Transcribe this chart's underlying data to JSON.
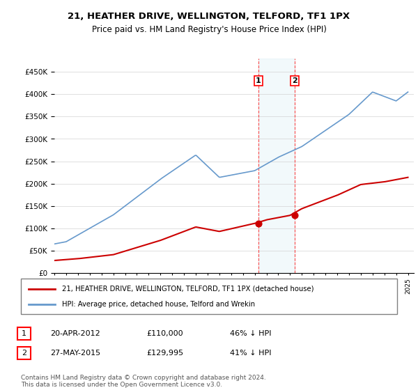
{
  "title": "21, HEATHER DRIVE, WELLINGTON, TELFORD, TF1 1PX",
  "subtitle": "Price paid vs. HM Land Registry's House Price Index (HPI)",
  "legend_line1": "21, HEATHER DRIVE, WELLINGTON, TELFORD, TF1 1PX (detached house)",
  "legend_line2": "HPI: Average price, detached house, Telford and Wrekin",
  "footnote": "Contains HM Land Registry data © Crown copyright and database right 2024.\nThis data is licensed under the Open Government Licence v3.0.",
  "sale_color": "#cc0000",
  "hpi_color": "#6699cc",
  "marker1_date": 2012.3,
  "marker1_label": "1",
  "marker1_price": 110000,
  "marker2_date": 2015.4,
  "marker2_label": "2",
  "marker2_price": 129995,
  "table_rows": [
    [
      "1",
      "20-APR-2012",
      "£110,000",
      "46% ↓ HPI"
    ],
    [
      "2",
      "27-MAY-2015",
      "£129,995",
      "41% ↓ HPI"
    ]
  ],
  "ylim": [
    0,
    480000
  ],
  "xlim_start": 1995,
  "xlim_end": 2025.5
}
